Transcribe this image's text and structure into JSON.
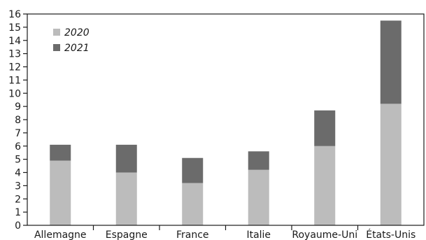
{
  "chart_data": {
    "type": "bar",
    "stacked": true,
    "categories": [
      "Allemagne",
      "Espagne",
      "France",
      "Italie",
      "Royaume-Uni",
      "États-Unis"
    ],
    "series": [
      {
        "name": "2020",
        "color": "#bcbcbc",
        "values": [
          4.9,
          4.0,
          3.2,
          4.2,
          6.0,
          9.2
        ]
      },
      {
        "name": "2021",
        "color": "#6b6b6b",
        "values": [
          1.2,
          2.1,
          1.9,
          1.4,
          2.7,
          6.3
        ]
      }
    ],
    "title": "",
    "xlabel": "",
    "ylabel": "",
    "ylim": [
      0,
      16
    ],
    "yticks": [
      0,
      1,
      2,
      3,
      4,
      5,
      6,
      7,
      8,
      9,
      10,
      11,
      12,
      13,
      14,
      15,
      16
    ],
    "grid": false,
    "legend_position": "top-left"
  }
}
